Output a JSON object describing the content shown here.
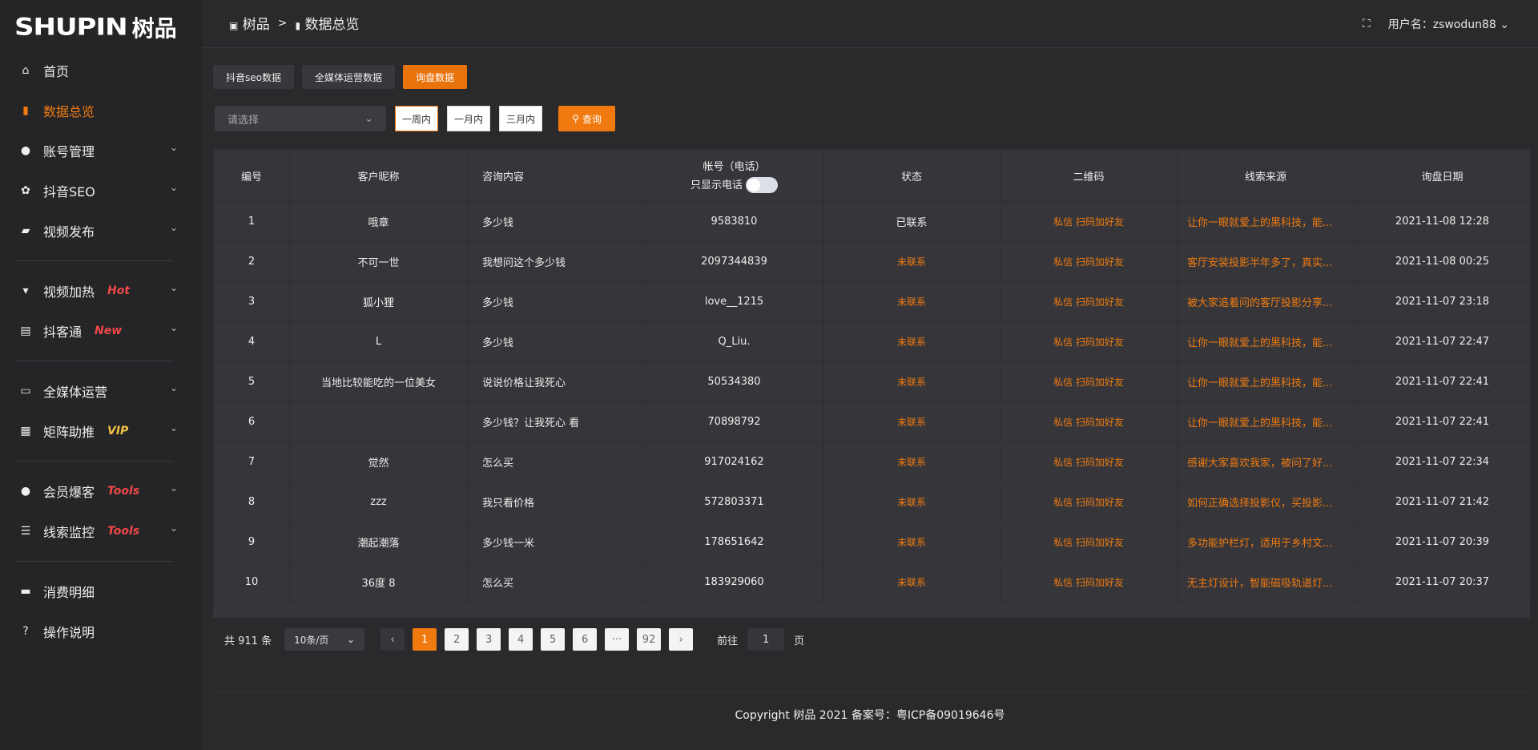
{
  "logo": {
    "en": "SHUPIN",
    "cn": "树品"
  },
  "colors": {
    "accent": "#f07a10",
    "hot": "#f04848",
    "vip": "#f5c242"
  },
  "sidebar": {
    "items": [
      {
        "label": "首页",
        "icon": "home-icon"
      },
      {
        "label": "数据总览",
        "icon": "bar-chart-icon",
        "active": true
      },
      {
        "label": "账号管理",
        "icon": "user-icon"
      },
      {
        "label": "抖音SEO",
        "icon": "gear-icon"
      },
      {
        "label": "视频发布",
        "icon": "camera-icon"
      },
      {
        "label": "视频加热",
        "icon": "flag-icon",
        "tag": "Hot"
      },
      {
        "label": "抖客通",
        "icon": "chat-icon",
        "tag": "New"
      },
      {
        "label": "全媒体运营",
        "icon": "monitor-icon"
      },
      {
        "label": "矩阵助推",
        "icon": "grid-icon",
        "tag": "VIP"
      },
      {
        "label": "会员爆客",
        "icon": "user-icon",
        "tag": "Tools"
      },
      {
        "label": "线索监控",
        "icon": "sliders-icon",
        "tag": "Tools"
      },
      {
        "label": "消费明细",
        "icon": "wallet-icon"
      },
      {
        "label": "操作说明",
        "icon": "help-icon"
      }
    ]
  },
  "header": {
    "breadcrumb": [
      "树品",
      "数据总览"
    ],
    "separator": ">",
    "user_label": "用户名：zswodun88"
  },
  "tabs": [
    "抖音seo数据",
    "全媒体运营数据",
    "询盘数据"
  ],
  "filters": {
    "select_placeholder": "请选择",
    "ranges": [
      "一周内",
      "一月内",
      "三月内"
    ],
    "query": "查询"
  },
  "table": {
    "headers": [
      "编号",
      "客户昵称",
      "咨询内容",
      "帐号（电话）",
      "状态",
      "二维码",
      "线索来源",
      "询盘日期"
    ],
    "phone_toggle_label": "只显示电话",
    "rows": [
      [
        "1",
        "哦章",
        "多少钱",
        "9583810",
        "已联系",
        "私信 扫码加好友",
        "让你一眼就爱上的黑科技，能...",
        "2021-11-08 12:28"
      ],
      [
        "2",
        "不可一世",
        "我想问这个多少钱",
        "2097344839",
        "未联系",
        "私信 扫码加好友",
        "客厅安装投影半年多了，真实...",
        "2021-11-08 00:25"
      ],
      [
        "3",
        "狐小狸",
        "多少钱",
        "love__1215",
        "未联系",
        "私信 扫码加好友",
        "被大家追着问的客厅投影分享...",
        "2021-11-07 23:18"
      ],
      [
        "4",
        "L",
        "多少钱",
        "Q_Liu.",
        "未联系",
        "私信 扫码加好友",
        "让你一眼就爱上的黑科技，能...",
        "2021-11-07 22:47"
      ],
      [
        "5",
        "当地比较能吃的一位美女",
        "说说价格让我死心",
        "50534380",
        "未联系",
        "私信 扫码加好友",
        "让你一眼就爱上的黑科技，能...",
        "2021-11-07 22:41"
      ],
      [
        "6",
        "",
        "多少钱？让我死心 看",
        "70898792",
        "未联系",
        "私信 扫码加好友",
        "让你一眼就爱上的黑科技，能...",
        "2021-11-07 22:41"
      ],
      [
        "7",
        "觉然",
        "怎么买",
        "917024162",
        "未联系",
        "私信 扫码加好友",
        "感谢大家喜欢我家，被问了好...",
        "2021-11-07 22:34"
      ],
      [
        "8",
        "zzz",
        "我只看价格",
        "572803371",
        "未联系",
        "私信 扫码加好友",
        "如何正确选择投影仪，买投影...",
        "2021-11-07 21:42"
      ],
      [
        "9",
        "潮起潮落",
        "多少钱一米",
        "178651642",
        "未联系",
        "私信 扫码加好友",
        "多功能护栏灯，适用于乡村文...",
        "2021-11-07 20:39"
      ],
      [
        "10",
        "36度 8",
        "怎么买",
        "183929060",
        "未联系",
        "私信 扫码加好友",
        "无主灯设计，智能磁吸轨道灯...",
        "2021-11-07 20:37"
      ]
    ]
  },
  "pagination": {
    "total": "共 911 条",
    "page_size": "10条/页",
    "pages": [
      "1",
      "2",
      "3",
      "4",
      "5",
      "6",
      "···",
      "92"
    ],
    "current": "1",
    "goto_label": "前往",
    "goto_value": "1",
    "page_suffix": "页"
  },
  "footer": "Copyright 树品 2021 备案号：粤ICP备09019646号"
}
